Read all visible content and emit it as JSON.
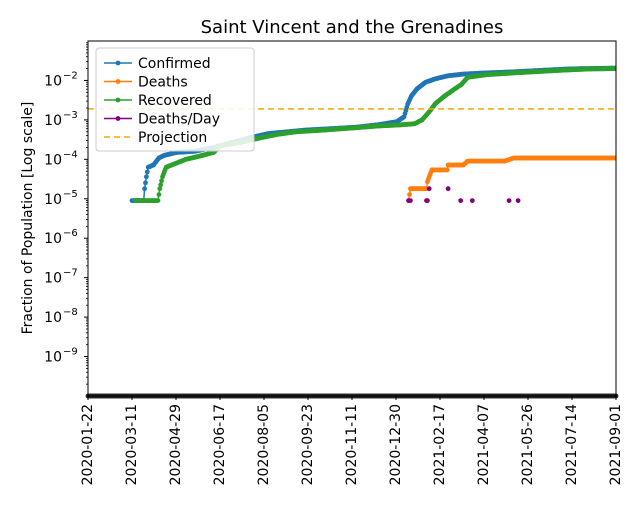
{
  "chart_data": {
    "type": "line",
    "title": "Saint Vincent and the Grenadines",
    "xlabel": "",
    "ylabel": "Fraction of Population [Log scale]",
    "yscale": "log",
    "ylim": [
      1e-10,
      0.1
    ],
    "xlim": [
      "2020-01-22",
      "2021-09-01"
    ],
    "x_ticks": [
      "2020-01-22",
      "2020-03-11",
      "2020-04-29",
      "2020-06-17",
      "2020-08-05",
      "2020-09-23",
      "2020-11-11",
      "2020-12-30",
      "2021-02-17",
      "2021-04-07",
      "2021-05-26",
      "2021-07-14",
      "2021-09-01"
    ],
    "y_ticks": [
      {
        "value": 1e-09,
        "base": "10",
        "exp": "−9"
      },
      {
        "value": 1e-08,
        "base": "10",
        "exp": "−8"
      },
      {
        "value": 1e-07,
        "base": "10",
        "exp": "−7"
      },
      {
        "value": 1e-06,
        "base": "10",
        "exp": "−6"
      },
      {
        "value": 1e-05,
        "base": "10",
        "exp": "−5"
      },
      {
        "value": 0.0001,
        "base": "10",
        "exp": "−4"
      },
      {
        "value": 0.001,
        "base": "10",
        "exp": "−3"
      },
      {
        "value": 0.01,
        "base": "10",
        "exp": "−2"
      }
    ],
    "legend_position": "upper-left",
    "grid": false,
    "series": [
      {
        "name": "Confirmed",
        "color": "#1f77b4",
        "style": "line-dots",
        "points": [
          [
            "2020-03-11",
            9e-06
          ],
          [
            "2020-03-24",
            9e-06
          ],
          [
            "2020-03-25",
            1.8e-05
          ],
          [
            "2020-03-27",
            3.6e-05
          ],
          [
            "2020-03-29",
            6.3e-05
          ],
          [
            "2020-04-04",
            7.2e-05
          ],
          [
            "2020-04-10",
            0.000108
          ],
          [
            "2020-04-16",
            0.000126
          ],
          [
            "2020-04-30",
            0.00015
          ],
          [
            "2020-05-20",
            0.00016
          ],
          [
            "2020-06-10",
            0.0002
          ],
          [
            "2020-07-01",
            0.00027
          ],
          [
            "2020-07-20",
            0.00035
          ],
          [
            "2020-08-10",
            0.00045
          ],
          [
            "2020-09-01",
            0.0005
          ],
          [
            "2020-09-20",
            0.00055
          ],
          [
            "2020-10-20",
            0.0006
          ],
          [
            "2020-11-15",
            0.00065
          ],
          [
            "2020-12-10",
            0.00075
          ],
          [
            "2020-12-31",
            0.0009
          ],
          [
            "2021-01-08",
            0.0012
          ],
          [
            "2021-01-12",
            0.0025
          ],
          [
            "2021-01-16",
            0.004
          ],
          [
            "2021-01-22",
            0.006
          ],
          [
            "2021-02-01",
            0.009
          ],
          [
            "2021-02-12",
            0.011
          ],
          [
            "2021-02-25",
            0.013
          ],
          [
            "2021-03-15",
            0.0145
          ],
          [
            "2021-04-10",
            0.0155
          ],
          [
            "2021-05-10",
            0.0165
          ],
          [
            "2021-06-10",
            0.018
          ],
          [
            "2021-07-10",
            0.0195
          ],
          [
            "2021-08-01",
            0.02
          ],
          [
            "2021-09-01",
            0.0205
          ]
        ]
      },
      {
        "name": "Deaths",
        "color": "#ff7f0e",
        "style": "line-dots",
        "points": [
          [
            "2021-01-13",
            9e-06
          ],
          [
            "2021-01-15",
            1.8e-05
          ],
          [
            "2021-02-02",
            1.8e-05
          ],
          [
            "2021-02-03",
            2.7e-05
          ],
          [
            "2021-02-05",
            3.6e-05
          ],
          [
            "2021-02-08",
            5.4e-05
          ],
          [
            "2021-02-25",
            5.4e-05
          ],
          [
            "2021-02-26",
            7.2e-05
          ],
          [
            "2021-03-15",
            7.2e-05
          ],
          [
            "2021-03-20",
            9e-05
          ],
          [
            "2021-04-30",
            9e-05
          ],
          [
            "2021-05-10",
            0.000108
          ],
          [
            "2021-09-01",
            0.000108
          ]
        ]
      },
      {
        "name": "Recovered",
        "color": "#2ca02c",
        "style": "line-dots",
        "points": [
          [
            "2020-03-15",
            9e-06
          ],
          [
            "2020-04-09",
            9e-06
          ],
          [
            "2020-04-11",
            1.8e-05
          ],
          [
            "2020-04-14",
            3.6e-05
          ],
          [
            "2020-04-18",
            6.3e-05
          ],
          [
            "2020-04-30",
            8.1e-05
          ],
          [
            "2020-05-10",
            0.0001
          ],
          [
            "2020-05-25",
            0.00012
          ],
          [
            "2020-06-10",
            0.00015
          ],
          [
            "2020-06-17",
            0.00022
          ],
          [
            "2020-07-10",
            0.00027
          ],
          [
            "2020-08-01",
            0.00035
          ],
          [
            "2020-08-20",
            0.00043
          ],
          [
            "2020-09-10",
            0.0005
          ],
          [
            "2020-10-10",
            0.00055
          ],
          [
            "2020-11-10",
            0.00062
          ],
          [
            "2020-12-10",
            0.0007
          ],
          [
            "2021-01-05",
            0.00075
          ],
          [
            "2021-01-20",
            0.0008
          ],
          [
            "2021-01-28",
            0.001
          ],
          [
            "2021-02-05",
            0.0016
          ],
          [
            "2021-02-12",
            0.0026
          ],
          [
            "2021-02-22",
            0.004
          ],
          [
            "2021-03-05",
            0.006
          ],
          [
            "2021-03-13",
            0.008
          ],
          [
            "2021-03-20",
            0.012
          ],
          [
            "2021-04-10",
            0.014
          ],
          [
            "2021-05-10",
            0.0155
          ],
          [
            "2021-06-10",
            0.017
          ],
          [
            "2021-07-10",
            0.0185
          ],
          [
            "2021-08-01",
            0.0195
          ],
          [
            "2021-09-01",
            0.02
          ]
        ]
      },
      {
        "name": "Deaths/Day",
        "color": "#800080",
        "style": "dots",
        "points": [
          [
            "2021-01-13",
            9e-06
          ],
          [
            "2021-01-15",
            9e-06
          ],
          [
            "2021-02-02",
            9e-06
          ],
          [
            "2021-02-03",
            9e-06
          ],
          [
            "2021-02-05",
            1.8e-05
          ],
          [
            "2021-02-26",
            1.8e-05
          ],
          [
            "2021-03-12",
            9e-06
          ],
          [
            "2021-03-25",
            9e-06
          ],
          [
            "2021-05-05",
            9e-06
          ],
          [
            "2021-05-15",
            9e-06
          ]
        ]
      },
      {
        "name": "Projection",
        "color": "#ffa500",
        "style": "dashed",
        "y": 0.0019
      }
    ]
  }
}
